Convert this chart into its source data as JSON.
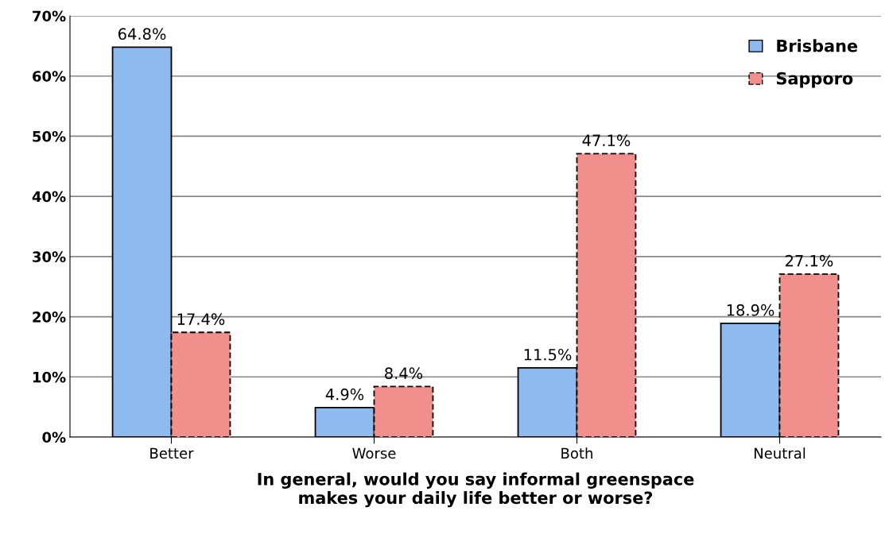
{
  "chart_data": {
    "type": "bar",
    "xlabel": "In general, would you say informal greenspace\nmakes your daily life better or worse?",
    "categories": [
      "Better",
      "Worse",
      "Both",
      "Neutral"
    ],
    "series": [
      {
        "name": "Brisbane",
        "color": "#8fbaf0",
        "values": [
          64.8,
          4.9,
          11.5,
          18.9
        ],
        "value_labels": [
          "64.8%",
          "4.9%",
          "11.5%",
          "18.9%"
        ],
        "line_style": "solid"
      },
      {
        "name": "Sapporo",
        "color": "#f08f8b",
        "values": [
          17.4,
          8.4,
          47.1,
          27.1
        ],
        "value_labels": [
          "17.4%",
          "8.4%",
          "47.1%",
          "27.1%"
        ],
        "line_style": "dashed"
      }
    ],
    "ylim": [
      0,
      70
    ],
    "yticks": [
      {
        "value": 0,
        "label": "0%"
      },
      {
        "value": 10,
        "label": "10%"
      },
      {
        "value": 20,
        "label": "20%"
      },
      {
        "value": 30,
        "label": "30%"
      },
      {
        "value": 40,
        "label": "40%"
      },
      {
        "value": 50,
        "label": "50%"
      },
      {
        "value": 60,
        "label": "60%"
      },
      {
        "value": 70,
        "label": "70%"
      }
    ],
    "grid": "y",
    "legend": "top right"
  }
}
